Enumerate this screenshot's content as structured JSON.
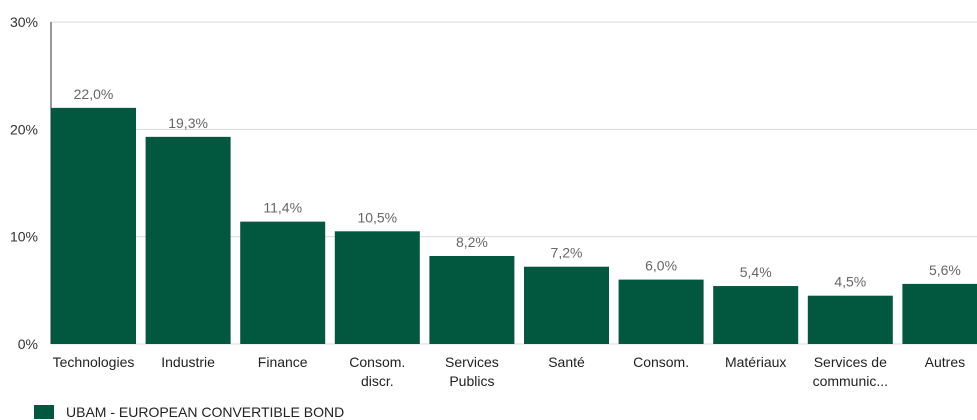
{
  "chart_data": {
    "type": "bar",
    "categories": [
      [
        "Technologies"
      ],
      [
        "Industrie"
      ],
      [
        "Finance"
      ],
      [
        "Consom.",
        "discr."
      ],
      [
        "Services",
        "Publics"
      ],
      [
        "Santé"
      ],
      [
        "Consom."
      ],
      [
        "Matériaux"
      ],
      [
        "Services de",
        "communic..."
      ],
      [
        "Autres"
      ]
    ],
    "series": [
      {
        "name": "UBAM - EUROPEAN CONVERTIBLE BOND",
        "values": [
          22.0,
          19.3,
          11.4,
          10.5,
          8.2,
          7.2,
          6.0,
          5.4,
          4.5,
          5.6
        ],
        "labels": [
          "22,0%",
          "19,3%",
          "11,4%",
          "10,5%",
          "8,2%",
          "7,2%",
          "6,0%",
          "5,4%",
          "4,5%",
          "5,6%"
        ]
      }
    ],
    "yticks": [
      {
        "value": 0,
        "label": "0%"
      },
      {
        "value": 10,
        "label": "10%"
      },
      {
        "value": 20,
        "label": "20%"
      },
      {
        "value": 30,
        "label": "30%"
      }
    ],
    "ylim": [
      0,
      30
    ],
    "grid": true,
    "legend_position": "bottom-left",
    "colors": {
      "bar": "#02573f",
      "grid": "#d9d9d9",
      "axis": "#333333"
    }
  }
}
